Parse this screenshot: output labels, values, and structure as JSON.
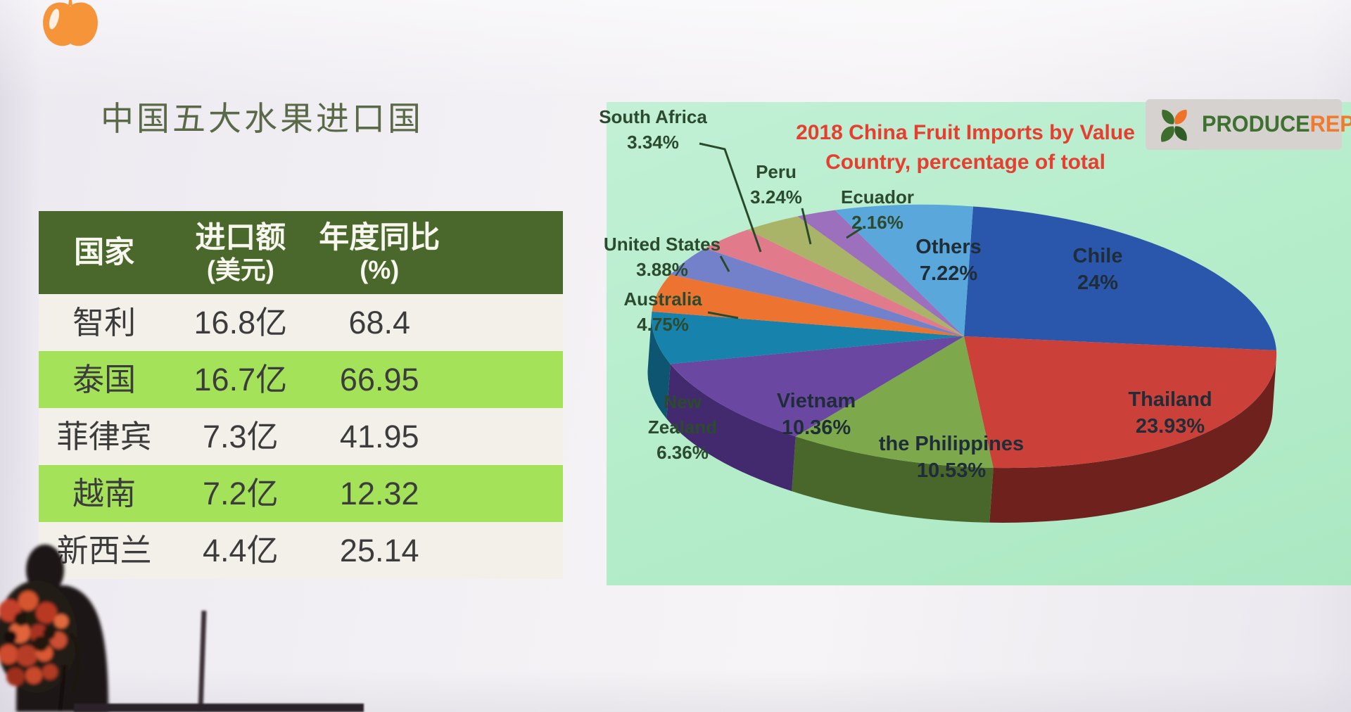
{
  "slide": {
    "title": "中国五大水果进口国"
  },
  "chart": {
    "title_line1": "2018 China Fruit Imports by Value",
    "title_line2": "Country, percentage of total",
    "logo": {
      "word1": "PRODUCE",
      "word2": "REPORT"
    },
    "background_color": "#b6edcb",
    "title_color": "#e63e30"
  },
  "chart_data": [
    {
      "type": "pie",
      "style": "3d",
      "title": "2018 China Fruit Imports by Value Country, percentage of total",
      "start_angle_deg": 0,
      "direction": "clockwise",
      "legend_position": "none",
      "slices": [
        {
          "label": "Chile",
          "pct_label": "24%",
          "value": 24.0,
          "color": "#2a57ab",
          "dark": "#1c3a74"
        },
        {
          "label": "Thailand",
          "pct_label": "23.93%",
          "value": 23.93,
          "color": "#cb4139",
          "dark": "#6e211d"
        },
        {
          "label": "the Philippines",
          "pct_label": "10.53%",
          "value": 10.53,
          "color": "#7da94c",
          "dark": "#49662b"
        },
        {
          "label": "Vietnam",
          "pct_label": "10.36%",
          "value": 10.36,
          "color": "#6a48a2",
          "dark": "#432a6e"
        },
        {
          "label": "New Zealand",
          "pct_label": "6.36%",
          "value": 6.36,
          "color": "#1782ab",
          "dark": "#0e5572"
        },
        {
          "label": "Australia",
          "pct_label": "4.75%",
          "value": 4.75,
          "color": "#ec7430",
          "dark": "#9e4c1e"
        },
        {
          "label": "United States",
          "pct_label": "3.88%",
          "value": 3.88,
          "color": "#7381cb",
          "dark": "#4c5590"
        },
        {
          "label": "South Africa",
          "pct_label": "3.34%",
          "value": 3.34,
          "color": "#e17b8b",
          "dark": "#a05060"
        },
        {
          "label": "Peru",
          "pct_label": "3.24%",
          "value": 3.24,
          "color": "#a9b468",
          "dark": "#747d42"
        },
        {
          "label": "Ecuador",
          "pct_label": "2.16%",
          "value": 2.16,
          "color": "#9c70bd",
          "dark": "#6b4a85"
        },
        {
          "label": "Others",
          "pct_label": "7.22%",
          "value": 7.22,
          "color": "#5aa7db",
          "dark": "#3a74a0"
        }
      ]
    },
    {
      "type": "table",
      "title": "中国五大水果进口国",
      "columns": [
        {
          "l1": "国家",
          "l2": ""
        },
        {
          "l1": "进口额",
          "l2": "(美元)"
        },
        {
          "l1": "年度同比",
          "l2": "(%)"
        }
      ],
      "rows": [
        [
          "智利",
          "16.8亿",
          "68.4"
        ],
        [
          "泰国",
          "16.7亿",
          "66.95"
        ],
        [
          "菲律宾",
          "7.3亿",
          "41.95"
        ],
        [
          "越南",
          "7.2亿",
          "12.32"
        ],
        [
          "新西兰",
          "4.4亿",
          "25.14"
        ]
      ],
      "header_bg": "#4b682c",
      "row_alt_bg": "#a4e359"
    }
  ]
}
